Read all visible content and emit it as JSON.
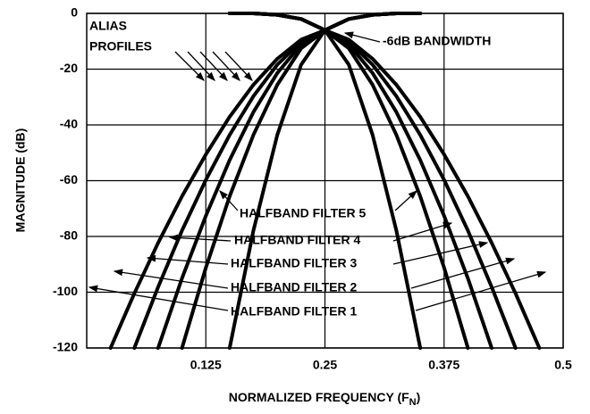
{
  "chart_data": {
    "type": "line",
    "ylabel": "MAGNITUDE (dB)",
    "xlabel": [
      "NORMALIZED FREQUENCY (F",
      "N",
      ")"
    ],
    "xlim": [
      0,
      0.5
    ],
    "xticks": [
      0.125,
      0.25,
      0.375,
      0.5
    ],
    "ylim": [
      -120,
      0
    ],
    "yticks": [
      0,
      -20,
      -40,
      -60,
      -80,
      -100,
      -120
    ],
    "grid": true,
    "x": [
      0,
      0.025,
      0.05,
      0.075,
      0.1,
      0.125,
      0.15,
      0.175,
      0.2,
      0.225,
      0.25,
      0.275,
      0.3,
      0.325,
      0.35,
      0.375,
      0.4,
      0.425,
      0.45,
      0.475,
      0.5
    ],
    "series": [
      {
        "name": "HALFBAND FILTER 5",
        "color": "#000000",
        "values": [
          null,
          null,
          null,
          null,
          null,
          null,
          0,
          0,
          -0.5,
          -2,
          -6,
          -18.4,
          -43.6,
          -77.9,
          -120,
          null,
          null,
          null,
          null,
          null,
          null
        ]
      },
      {
        "name": "HALFBAND FILTER 4",
        "color": "#000000",
        "values": [
          null,
          null,
          null,
          null,
          null,
          null,
          0,
          0,
          -0.5,
          -2,
          -6,
          -12.5,
          -25.6,
          -43.6,
          -65.6,
          -91.2,
          -120,
          null,
          null,
          null,
          null
        ]
      },
      {
        "name": "HALFBAND FILTER 3",
        "color": "#000000",
        "values": [
          null,
          null,
          null,
          null,
          null,
          null,
          0,
          0,
          -0.5,
          -2,
          -6,
          -11.1,
          -21.4,
          -35.4,
          -52.6,
          -72.6,
          -95,
          -120,
          null,
          null,
          null
        ]
      },
      {
        "name": "HALFBAND FILTER 2",
        "color": "#000000",
        "values": [
          null,
          null,
          null,
          null,
          null,
          null,
          0,
          0,
          -0.5,
          -2,
          -6,
          -10.1,
          -18.4,
          -29.7,
          -43.6,
          -59.7,
          -77.9,
          -98.1,
          -120,
          null,
          null
        ]
      },
      {
        "name": "HALFBAND FILTER 1",
        "color": "#000000",
        "values": [
          null,
          null,
          null,
          null,
          null,
          null,
          0,
          0,
          -0.5,
          -2,
          -6,
          -9.4,
          -16.3,
          -25.6,
          -37.1,
          -50.6,
          -65.6,
          -82.3,
          -100.4,
          -120,
          null
        ]
      },
      {
        "color": "#000000",
        "values": [
          null,
          null,
          null,
          null,
          null,
          null,
          -120,
          -77.9,
          -43.6,
          -18.4,
          -6,
          -2,
          -0.5,
          0,
          0,
          null,
          null,
          null,
          null,
          null,
          null
        ]
      },
      {
        "color": "#000000",
        "values": [
          null,
          null,
          null,
          null,
          -120,
          -91.2,
          -65.6,
          -43.6,
          -25.6,
          -12.5,
          -6,
          -2,
          -0.5,
          0,
          0,
          null,
          null,
          null,
          null,
          null,
          null
        ]
      },
      {
        "color": "#000000",
        "values": [
          null,
          null,
          null,
          -120,
          -95,
          -72.6,
          -52.6,
          -35.4,
          -21.4,
          -11.1,
          -6,
          -2,
          -0.5,
          0,
          0,
          null,
          null,
          null,
          null,
          null,
          null
        ]
      },
      {
        "color": "#000000",
        "values": [
          null,
          null,
          -120,
          -98.1,
          -77.9,
          -59.7,
          -43.6,
          -29.7,
          -18.4,
          -10.1,
          -6,
          -2,
          -0.5,
          0,
          0,
          null,
          null,
          null,
          null,
          null,
          null
        ]
      },
      {
        "color": "#000000",
        "values": [
          null,
          -120,
          -100.4,
          -82.3,
          -65.6,
          -50.6,
          -37.1,
          -25.6,
          -16.3,
          -9.4,
          -6,
          -2,
          -0.5,
          0,
          0,
          null,
          null,
          null,
          null,
          null,
          null
        ]
      }
    ],
    "annotations": [
      "ALIAS",
      "PROFILES",
      "-6dB BANDWIDTH"
    ]
  }
}
